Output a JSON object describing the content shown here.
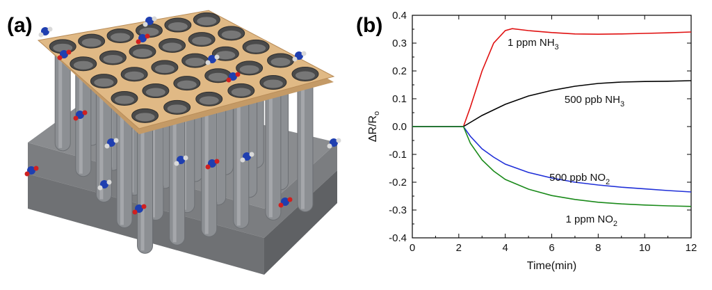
{
  "panels": {
    "a_label": "(a)",
    "b_label": "(b)"
  },
  "illustration": {
    "plate_color": "#e0b985",
    "pillar_color": "#8c8f93",
    "base_color": "#8a8c8f",
    "molecule_colors": [
      "#1f3fb0",
      "#d02020",
      "#d9d9d9"
    ]
  },
  "chart_data": {
    "type": "line",
    "xlabel": "Time(min)",
    "ylabel": "ΔR/Ro",
    "ylabel_main": "ΔR/R",
    "ylabel_sub": "o",
    "xlim": [
      0,
      12
    ],
    "ylim": [
      -0.4,
      0.4
    ],
    "xticks": [
      "0",
      "2",
      "4",
      "6",
      "8",
      "10",
      "12"
    ],
    "yticks": [
      "-0.4",
      "-0.3",
      "-0.2",
      "-0.1",
      "0.0",
      "0.1",
      "0.2",
      "0.3",
      "0.4"
    ],
    "series": [
      {
        "name": "1 ppm NH3",
        "label_main": "1 ppm NH",
        "label_sub": "3",
        "color": "#e01010",
        "x": [
          0,
          1,
          2,
          2.2,
          2.5,
          3,
          3.5,
          4,
          4.3,
          5,
          6,
          7,
          8,
          9,
          10,
          11,
          12
        ],
        "y": [
          0,
          0,
          0,
          0,
          0.07,
          0.2,
          0.3,
          0.345,
          0.352,
          0.345,
          0.338,
          0.333,
          0.332,
          0.333,
          0.335,
          0.337,
          0.34
        ]
      },
      {
        "name": "500 ppb NH3",
        "label_main": "500 ppb NH",
        "label_sub": "3",
        "color": "#000000",
        "x": [
          0,
          1,
          2,
          2.2,
          2.5,
          3,
          3.5,
          4,
          5,
          6,
          7,
          8,
          9,
          10,
          11,
          12
        ],
        "y": [
          0,
          0,
          0,
          0,
          0.015,
          0.04,
          0.06,
          0.08,
          0.11,
          0.13,
          0.145,
          0.155,
          0.16,
          0.162,
          0.163,
          0.165
        ]
      },
      {
        "name": "500 ppb NO2",
        "label_main": "500 ppb NO",
        "label_sub": "2",
        "color": "#1f2fd8",
        "x": [
          0,
          1,
          2,
          2.2,
          2.5,
          3,
          3.5,
          4,
          5,
          6,
          7,
          8,
          9,
          10,
          11,
          12
        ],
        "y": [
          0,
          0,
          0,
          0,
          -0.035,
          -0.08,
          -0.11,
          -0.135,
          -0.165,
          -0.185,
          -0.2,
          -0.21,
          -0.218,
          -0.224,
          -0.23,
          -0.235
        ]
      },
      {
        "name": "1 ppm NO2",
        "label_main": "1 ppm NO",
        "label_sub": "2",
        "color": "#1a8a1a",
        "x": [
          0,
          1,
          2,
          2.2,
          2.5,
          3,
          3.5,
          4,
          5,
          6,
          7,
          8,
          9,
          10,
          11,
          12
        ],
        "y": [
          0,
          0,
          0,
          0,
          -0.06,
          -0.12,
          -0.16,
          -0.19,
          -0.225,
          -0.248,
          -0.262,
          -0.272,
          -0.278,
          -0.282,
          -0.285,
          -0.287
        ]
      }
    ]
  }
}
